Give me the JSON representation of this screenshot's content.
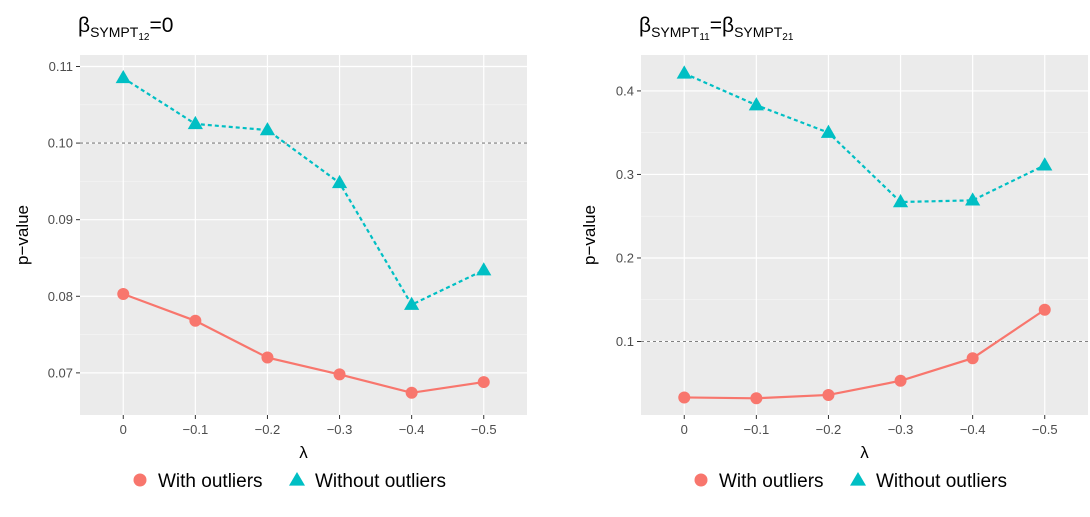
{
  "chart_data": [
    {
      "type": "line",
      "title": {
        "base": "β",
        "sub1": "SYMPT",
        "sub2": "12",
        "rest": "=0"
      },
      "categories": [
        "0",
        "−0.1",
        "−0.2",
        "−0.3",
        "−0.4",
        "−0.5"
      ],
      "xlabel": "λ",
      "ylabel": "p−value",
      "yticks": [
        0.07,
        0.08,
        0.09,
        0.1,
        0.11
      ],
      "ytick_labels": [
        "0.07",
        "0.08",
        "0.09",
        "0.10",
        "0.11"
      ],
      "ylim": [
        0.0645,
        0.1115
      ],
      "reference_line": 0.1,
      "series": [
        {
          "name": "With outliers",
          "values": [
            0.0803,
            0.0768,
            0.072,
            0.0698,
            0.0674,
            0.0688
          ]
        },
        {
          "name": "Without outliers",
          "values": [
            0.1085,
            0.1025,
            0.1017,
            0.0948,
            0.0789,
            0.0834
          ]
        }
      ]
    },
    {
      "type": "line",
      "title": {
        "base1": "β",
        "sub1a": "SYMPT",
        "sub1b": "11",
        "mid": "=β",
        "sub2a": "SYMPT",
        "sub2b": "21"
      },
      "categories": [
        "0",
        "−0.1",
        "−0.2",
        "−0.3",
        "−0.4",
        "−0.5"
      ],
      "xlabel": "λ",
      "ylabel": "p−value",
      "yticks": [
        0.1,
        0.2,
        0.3,
        0.4
      ],
      "ytick_labels": [
        "0.1",
        "0.2",
        "0.3",
        "0.4"
      ],
      "ylim": [
        0.012,
        0.443
      ],
      "reference_line": 0.1,
      "series": [
        {
          "name": "With outliers",
          "values": [
            0.033,
            0.032,
            0.036,
            0.053,
            0.08,
            0.138
          ]
        },
        {
          "name": "Without outliers",
          "values": [
            0.421,
            0.383,
            0.35,
            0.267,
            0.269,
            0.311
          ]
        }
      ]
    }
  ],
  "legend": {
    "items": [
      {
        "label": "With outliers",
        "shape": "circle",
        "color": "#F8766D"
      },
      {
        "label": "Without outliers",
        "shape": "triangle",
        "color": "#00BFC4"
      }
    ]
  },
  "colors": {
    "with": "#F8766D",
    "without": "#00BFC4",
    "panel": "#EBEBEB",
    "grid": "#FFFFFF",
    "ref": "#808080"
  }
}
